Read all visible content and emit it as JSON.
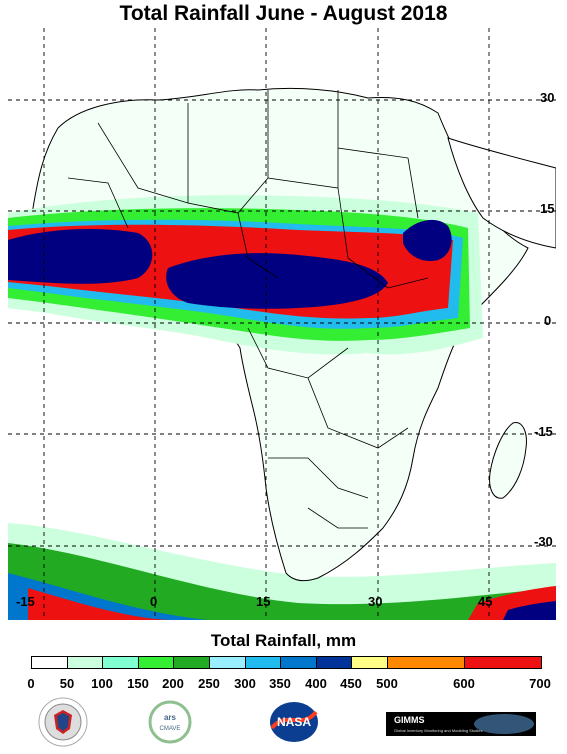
{
  "title": "Total Rainfall June - August 2018",
  "map": {
    "lat_labels": [
      "30",
      "15",
      "0",
      "-15",
      "-30"
    ],
    "lon_labels": [
      "-15",
      "0",
      "15",
      "30",
      "45"
    ],
    "colors": {
      "ocean": "#ffffff",
      "border": "#000000",
      "grid": "#000000"
    }
  },
  "legend": {
    "title": "Total Rainfall, mm",
    "ticks": [
      "0",
      "50",
      "100",
      "150",
      "200",
      "250",
      "300",
      "350",
      "400",
      "450",
      "500",
      "600",
      "700"
    ],
    "colors": [
      "#ffffff",
      "#ccffdd",
      "#80ffd0",
      "#33ee33",
      "#22aa22",
      "#99eeff",
      "#22bbee",
      "#0077cc",
      "#003399",
      "#ffff88",
      "#ff8800",
      "#ee1111",
      "#000080"
    ]
  },
  "logos": [
    {
      "name": "defense-health-agency-seal",
      "text": "DEFENSE HEALTH AGENCY"
    },
    {
      "name": "usda-cmave-logo",
      "text": "USDA ars CMAVE"
    },
    {
      "name": "nasa-logo",
      "text": "NASA"
    },
    {
      "name": "gimms-logo",
      "text": "GIMMS",
      "subtitle": "Global Inventory Monitoring and Modeling Studies"
    }
  ]
}
